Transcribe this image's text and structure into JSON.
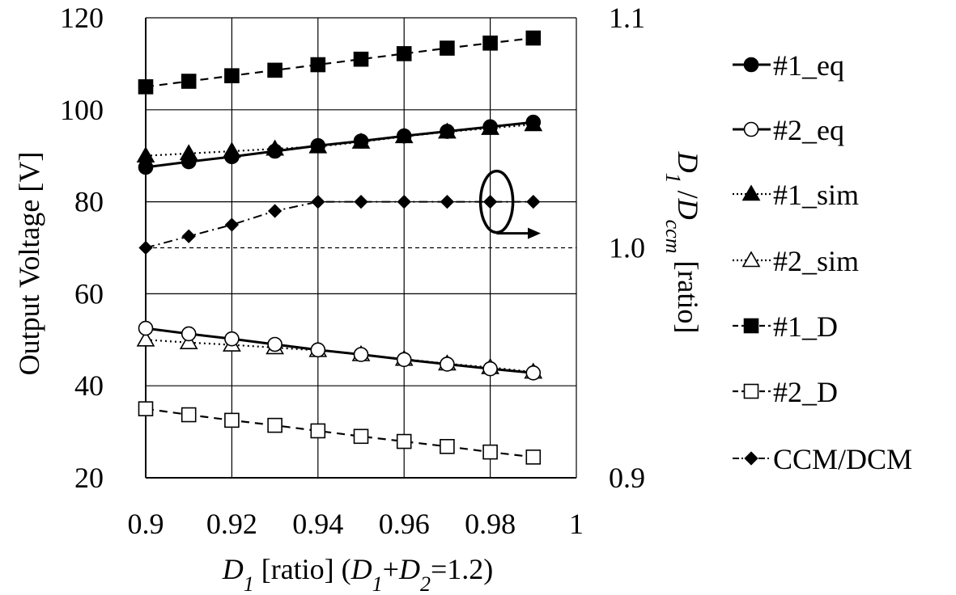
{
  "chart_data": {
    "type": "line",
    "x": [
      0.9,
      0.91,
      0.92,
      0.93,
      0.94,
      0.95,
      0.96,
      0.97,
      0.98,
      0.99
    ],
    "xlim": [
      0.9,
      1.0
    ],
    "x_ticks": [
      0.9,
      0.92,
      0.94,
      0.96,
      0.98,
      1
    ],
    "x_tick_labels": [
      "0.9",
      "0.92",
      "0.94",
      "0.96",
      "0.98",
      "1"
    ],
    "xlabel_parts": [
      "D",
      "1",
      " [ratio] (",
      "D",
      "1",
      "+",
      "D",
      "2",
      "=1.2)"
    ],
    "ylabel_left": "Output Voltage [V]",
    "ylim_left": [
      20,
      120
    ],
    "y_ticks_left": [
      20,
      40,
      60,
      80,
      100,
      120
    ],
    "ylabel_right_parts": [
      "D",
      "1",
      " /",
      "D",
      "ccm",
      " [ratio]"
    ],
    "ylim_right": [
      0.9,
      1.1
    ],
    "y_tick_labels_right": [
      "0.9",
      "1.0",
      "1.1"
    ],
    "grid": true,
    "legend_position": "right",
    "series": [
      {
        "name": "#1_eq",
        "axis": "left",
        "marker": "circle-filled",
        "line": "solid",
        "values": [
          87.5,
          88.7,
          89.8,
          91.0,
          92.2,
          93.2,
          94.3,
          95.3,
          96.3,
          97.3
        ]
      },
      {
        "name": "#2_eq",
        "axis": "left",
        "marker": "circle-open",
        "line": "solid",
        "values": [
          52.5,
          51.3,
          50.2,
          49.0,
          47.8,
          46.8,
          45.7,
          44.7,
          43.7,
          42.8
        ]
      },
      {
        "name": "#1_sim",
        "axis": "left",
        "marker": "triangle-filled",
        "line": "dotted",
        "values": [
          90.0,
          90.5,
          91.0,
          91.5,
          92.0,
          93.0,
          94.2,
          95.2,
          96.0,
          96.8
        ]
      },
      {
        "name": "#2_sim",
        "axis": "left",
        "marker": "triangle-open",
        "line": "dotted",
        "values": [
          50.0,
          49.4,
          48.9,
          48.3,
          47.7,
          46.8,
          45.8,
          44.8,
          44.0,
          43.0
        ]
      },
      {
        "name": "#1_D",
        "axis": "left",
        "marker": "square-filled",
        "line": "dashed",
        "values": [
          105.0,
          106.2,
          107.4,
          108.6,
          109.8,
          111.0,
          112.2,
          113.4,
          114.5,
          115.6
        ]
      },
      {
        "name": "#2_D",
        "axis": "left",
        "marker": "square-open",
        "line": "dashed",
        "values": [
          35.0,
          33.7,
          32.5,
          31.4,
          30.2,
          29.0,
          27.9,
          26.8,
          25.6,
          24.5
        ]
      },
      {
        "name": "CCM/DCM",
        "axis": "right",
        "marker": "diamond-filled",
        "line": "dashdot",
        "values": [
          1.0,
          1.005,
          1.01,
          1.016,
          1.02,
          1.02,
          1.02,
          1.02,
          1.02,
          1.02
        ]
      }
    ],
    "annotations": [
      {
        "type": "reference-line",
        "axis": "right",
        "value": 1.0,
        "style": "dashed"
      },
      {
        "type": "axis-indicator",
        "points_to": "right-axis",
        "at_x": 0.98,
        "at_y_right": 1.02
      }
    ]
  }
}
